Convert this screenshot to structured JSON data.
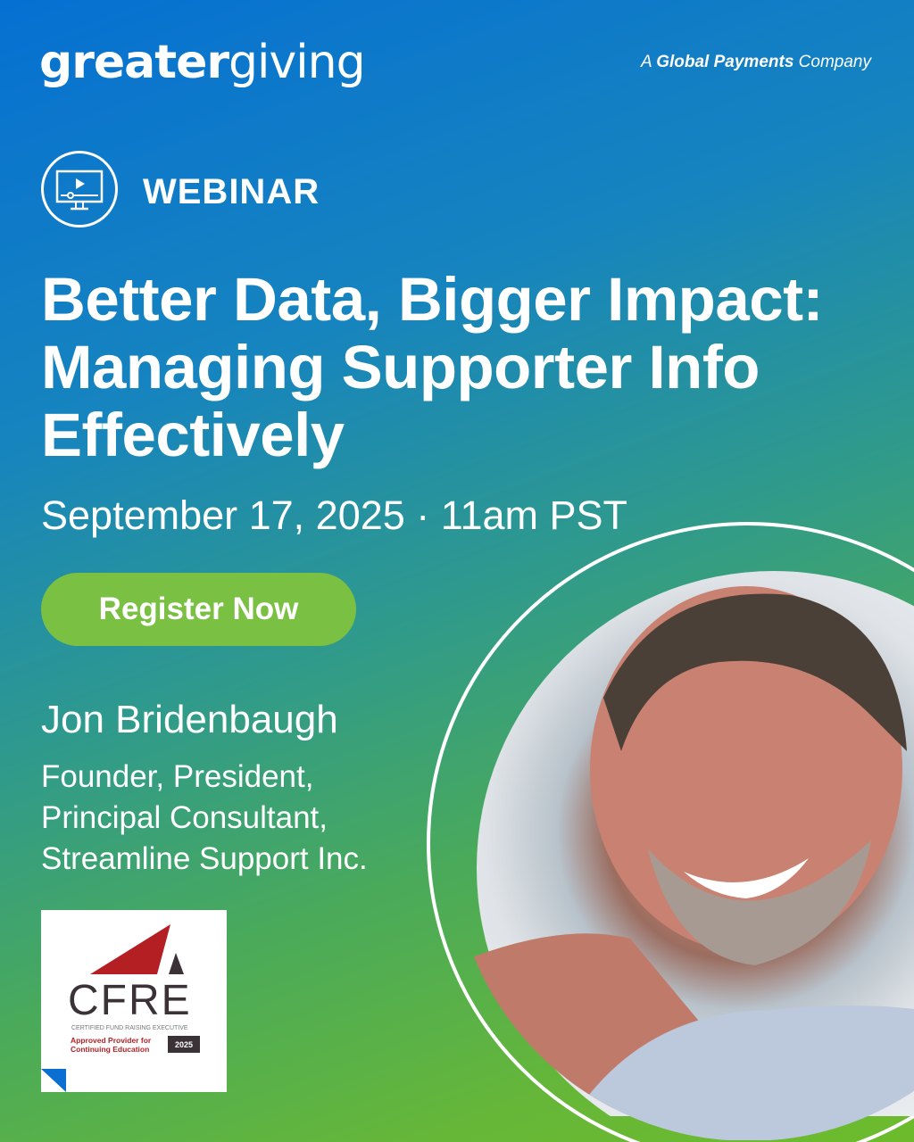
{
  "brand": {
    "logo_bold": "greater",
    "logo_light": "giving",
    "tagline_prefix": "A ",
    "tagline_bold": "Global Payments",
    "tagline_suffix": " Company"
  },
  "event": {
    "type_label": "WEBINAR",
    "title": "Better Data, Bigger Impact: Managing Supporter Info Effectively",
    "date": "September 17, 2025 · 11am PST"
  },
  "cta": {
    "register_label": "Register Now"
  },
  "speaker": {
    "name": "Jon Bridenbaugh",
    "role_lines": [
      "Founder, President,",
      "Principal Consultant,",
      "Streamline Support Inc."
    ]
  },
  "badge": {
    "name": "CFRE",
    "subtitle": "CERTIFIED FUND RAISING EXECUTIVE",
    "approved_line1": "Approved Provider for",
    "approved_line2": "Continuing Education",
    "year": "2025"
  },
  "icons": {
    "webinar": "monitor-play-icon"
  },
  "colors": {
    "gradient_start": "#0670d2",
    "gradient_end": "#6dbb2c",
    "button": "#7ac143",
    "cfre_red": "#b41f24",
    "cfre_dark": "#3a3236"
  }
}
